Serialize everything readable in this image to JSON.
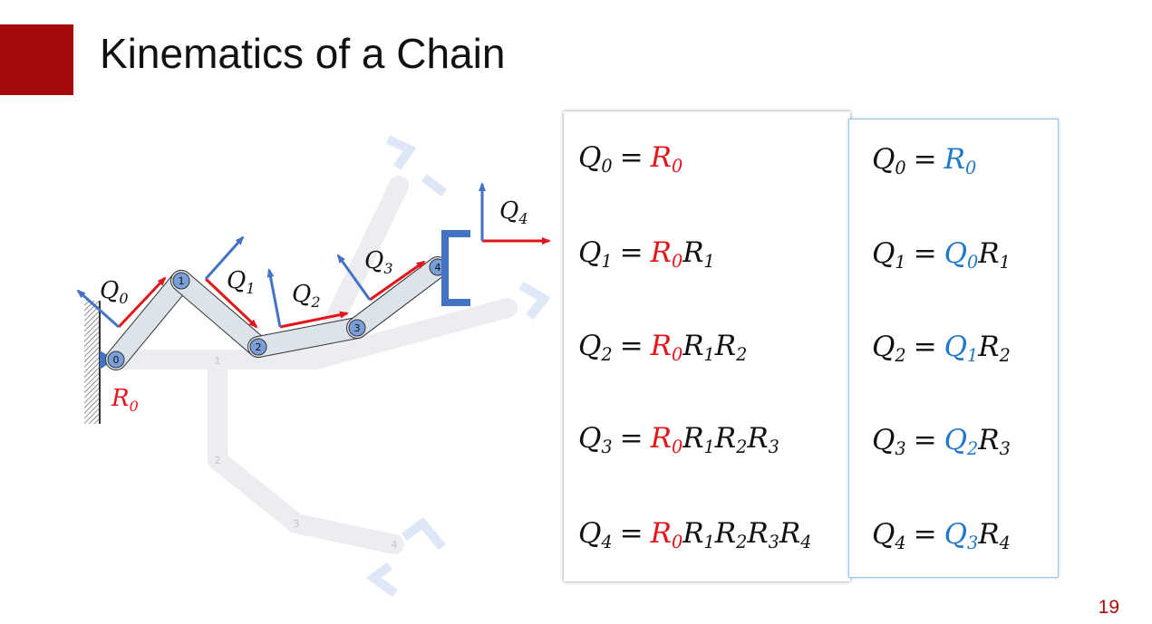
{
  "title": "Kinematics of a Chain",
  "slide_number": "19",
  "diagram": {
    "frame_labels": [
      {
        "sym": "Q",
        "sub": "0"
      },
      {
        "sym": "Q",
        "sub": "1"
      },
      {
        "sym": "Q",
        "sub": "2"
      },
      {
        "sym": "Q",
        "sub": "3"
      },
      {
        "sym": "Q",
        "sub": "4"
      }
    ],
    "base_label": {
      "sym": "R",
      "sub": "0"
    },
    "joints": [
      "0",
      "1",
      "2",
      "3",
      "4"
    ],
    "ghost_joints": [
      "1",
      "2",
      "3",
      "4"
    ]
  },
  "equations_left": [
    {
      "lhs": "Q",
      "lhs_sub": "0",
      "eq": "=",
      "terms": [
        {
          "sym": "R",
          "sub": "0",
          "color": "red"
        }
      ]
    },
    {
      "lhs": "Q",
      "lhs_sub": "1",
      "eq": "=",
      "terms": [
        {
          "sym": "R",
          "sub": "0",
          "color": "red"
        },
        {
          "sym": "R",
          "sub": "1",
          "color": "black"
        }
      ]
    },
    {
      "lhs": "Q",
      "lhs_sub": "2",
      "eq": "=",
      "terms": [
        {
          "sym": "R",
          "sub": "0",
          "color": "red"
        },
        {
          "sym": "R",
          "sub": "1",
          "color": "black"
        },
        {
          "sym": "R",
          "sub": "2",
          "color": "black"
        }
      ]
    },
    {
      "lhs": "Q",
      "lhs_sub": "3",
      "eq": "=",
      "terms": [
        {
          "sym": "R",
          "sub": "0",
          "color": "red"
        },
        {
          "sym": "R",
          "sub": "1",
          "color": "black"
        },
        {
          "sym": "R",
          "sub": "2",
          "color": "black"
        },
        {
          "sym": "R",
          "sub": "3",
          "color": "black"
        }
      ]
    },
    {
      "lhs": "Q",
      "lhs_sub": "4",
      "eq": "=",
      "terms": [
        {
          "sym": "R",
          "sub": "0",
          "color": "red"
        },
        {
          "sym": "R",
          "sub": "1",
          "color": "black"
        },
        {
          "sym": "R",
          "sub": "2",
          "color": "black"
        },
        {
          "sym": "R",
          "sub": "3",
          "color": "black"
        },
        {
          "sym": "R",
          "sub": "4",
          "color": "black"
        }
      ]
    }
  ],
  "equations_right": [
    {
      "lhs": "Q",
      "lhs_sub": "0",
      "eq": "=",
      "terms": [
        {
          "sym": "R",
          "sub": "0",
          "color": "blue"
        }
      ]
    },
    {
      "lhs": "Q",
      "lhs_sub": "1",
      "eq": "=",
      "terms": [
        {
          "sym": "Q",
          "sub": "0",
          "color": "blue"
        },
        {
          "sym": "R",
          "sub": "1",
          "color": "black"
        }
      ]
    },
    {
      "lhs": "Q",
      "lhs_sub": "2",
      "eq": "=",
      "terms": [
        {
          "sym": "Q",
          "sub": "1",
          "color": "blue"
        },
        {
          "sym": "R",
          "sub": "2",
          "color": "black"
        }
      ]
    },
    {
      "lhs": "Q",
      "lhs_sub": "3",
      "eq": "=",
      "terms": [
        {
          "sym": "Q",
          "sub": "2",
          "color": "blue"
        },
        {
          "sym": "R",
          "sub": "3",
          "color": "black"
        }
      ]
    },
    {
      "lhs": "Q",
      "lhs_sub": "4",
      "eq": "=",
      "terms": [
        {
          "sym": "Q",
          "sub": "3",
          "color": "blue"
        },
        {
          "sym": "R",
          "sub": "4",
          "color": "black"
        }
      ]
    }
  ],
  "colors": {
    "accent": "#a50a0a",
    "red": "#e4141b",
    "blue": "#1f78c8",
    "frame_blue": "#4472c4"
  }
}
